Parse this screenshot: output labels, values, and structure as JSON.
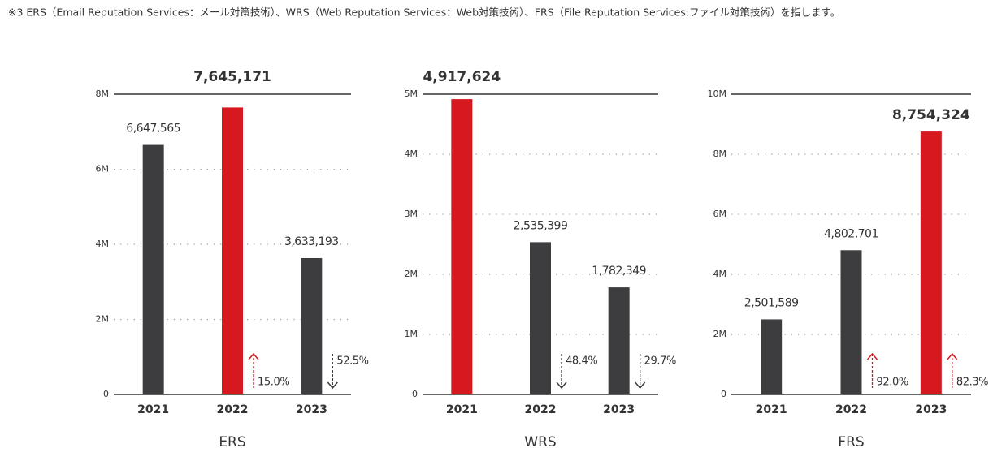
{
  "note": "※3 ERS（Email Reputation Services：メール対策技術）、WRS（Web Reputation Services：Web対策技術）、FRS（File Reputation Services:ファイル対策技術）を指します。",
  "chart_data": [
    {
      "type": "bar",
      "title": "ERS",
      "categories": [
        "2021",
        "2022",
        "2023"
      ],
      "values": [
        6647565,
        7645171,
        3633193
      ],
      "value_labels": [
        "6,647,565",
        "7,645,171",
        "3,633,193"
      ],
      "colors": [
        "#3d3c3e",
        "#d6181f",
        "#3d3c3e"
      ],
      "changes": [
        null,
        15.0,
        52.5
      ],
      "change_labels": [
        null,
        "15.0%",
        "52.5%"
      ],
      "change_directions": [
        null,
        "up",
        "down"
      ],
      "ylim": [
        0,
        8000000
      ],
      "yticks": [
        0,
        {
          "value": 2000000,
          "label": "2M"
        },
        {
          "value": 4000000,
          "label": "4M"
        },
        {
          "value": 6000000,
          "label": "6M"
        },
        {
          "value": 8000000,
          "label": "8M"
        }
      ],
      "grid": true
    },
    {
      "type": "bar",
      "title": "WRS",
      "categories": [
        "2021",
        "2022",
        "2023"
      ],
      "values": [
        4917624,
        2535399,
        1782349
      ],
      "value_labels": [
        "4,917,624",
        "2,535,399",
        "1,782,349"
      ],
      "colors": [
        "#d6181f",
        "#3d3c3e",
        "#3d3c3e"
      ],
      "changes": [
        null,
        48.4,
        29.7
      ],
      "change_labels": [
        null,
        "48.4%",
        "29.7%"
      ],
      "change_directions": [
        null,
        "down",
        "down"
      ],
      "ylim": [
        0,
        5000000
      ],
      "yticks": [
        0,
        {
          "value": 1000000,
          "label": "1M"
        },
        {
          "value": 2000000,
          "label": "2M"
        },
        {
          "value": 3000000,
          "label": "3M"
        },
        {
          "value": 4000000,
          "label": "4M"
        },
        {
          "value": 5000000,
          "label": "5M"
        }
      ],
      "grid": true
    },
    {
      "type": "bar",
      "title": "FRS",
      "categories": [
        "2021",
        "2022",
        "2023"
      ],
      "values": [
        2501589,
        4802701,
        8754324
      ],
      "value_labels": [
        "2,501,589",
        "4,802,701",
        "8,754,324"
      ],
      "colors": [
        "#3d3c3e",
        "#3d3c3e",
        "#d6181f"
      ],
      "changes": [
        null,
        92.0,
        82.3
      ],
      "change_labels": [
        null,
        "92.0%",
        "82.3%"
      ],
      "change_directions": [
        null,
        "up",
        "up"
      ],
      "ylim": [
        0,
        10000000
      ],
      "yticks": [
        0,
        {
          "value": 2000000,
          "label": "2M"
        },
        {
          "value": 4000000,
          "label": "4M"
        },
        {
          "value": 6000000,
          "label": "6M"
        },
        {
          "value": 8000000,
          "label": "8M"
        },
        {
          "value": 10000000,
          "label": "10M"
        }
      ],
      "grid": true
    }
  ]
}
